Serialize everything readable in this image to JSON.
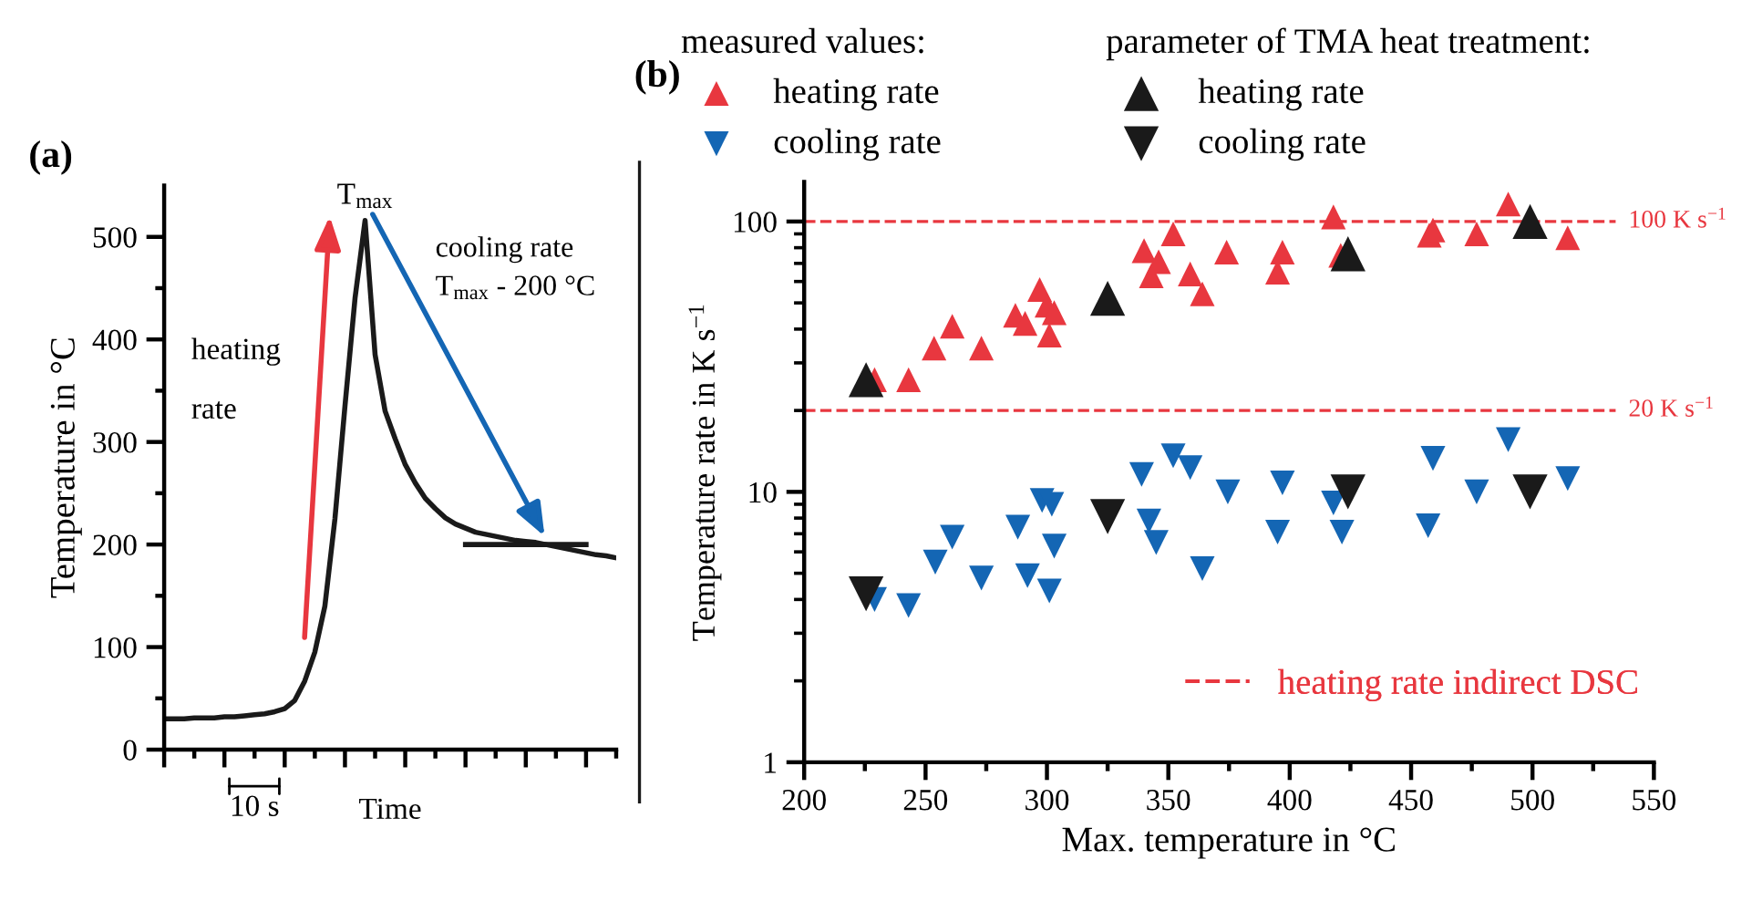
{
  "chart_data": [
    {
      "type": "line",
      "title": "(a)",
      "xlabel": "Time",
      "ylabel": "Temperature in °C",
      "categories": [
        null,
        null,
        null,
        null,
        null,
        null,
        null,
        null,
        null,
        null,
        null,
        null,
        null,
        null,
        null,
        null,
        null,
        null,
        null,
        null,
        null,
        null,
        null,
        null,
        null,
        null,
        null,
        null,
        null,
        null,
        null,
        null,
        null,
        null,
        null,
        null,
        null,
        null,
        null,
        null,
        null,
        null,
        null,
        null,
        null,
        null
      ],
      "series": [
        {
          "color": "#1a1a1a",
          "values": [
            30,
            30,
            30,
            31,
            31,
            31,
            32,
            32,
            33,
            34,
            35,
            37,
            40,
            48,
            67,
            95,
            140,
            225,
            335,
            440,
            516,
            385,
            330,
            303,
            278,
            260,
            245,
            235,
            226,
            220,
            216,
            212,
            210,
            208,
            206,
            204,
            203,
            202,
            200,
            198,
            196,
            194,
            192,
            190,
            189,
            187
          ]
        },
        {
          "color": "#1a1a1a",
          "values": [
            null,
            null,
            null,
            null,
            null,
            null,
            null,
            null,
            null,
            null,
            null,
            null,
            null,
            null,
            null,
            null,
            null,
            null,
            null,
            null,
            null,
            null,
            null,
            null,
            null,
            null,
            null,
            null,
            null,
            null,
            200,
            200,
            200,
            200,
            200,
            200,
            200,
            200,
            200,
            200,
            200,
            200,
            200,
            null,
            null,
            null
          ]
        }
      ],
      "ylim": [
        0,
        550
      ],
      "yticks": [
        0,
        {
          "value": 50,
          "label": null
        },
        100,
        {
          "value": 150,
          "label": null
        },
        200,
        {
          "value": 250,
          "label": null
        },
        300,
        {
          "value": 350,
          "label": null
        },
        400,
        {
          "value": 450,
          "label": null
        },
        500
      ],
      "annotations": [
        "T$_{max}$",
        "heating\n\nrate",
        "cooling rate\nT$_{max}$ - 200 °C",
        "10 s"
      ],
      "grid": false,
      "marker": "none",
      "line_style": "solid"
    },
    {
      "type": "scatter",
      "title": "(b)",
      "xlabel": "Max. temperature in °C",
      "ylabel": "Temperature rate in K s$^{−1}$",
      "series": [
        {
          "name": "heating rate",
          "color": "#e8373f",
          "marker": "triangle",
          "x": [
            229,
            243,
            253.5,
            261,
            273,
            287,
            291,
            297,
            300,
            303,
            301,
            340,
            343,
            346,
            352,
            359,
            364,
            374,
            395,
            397,
            418,
            421,
            457.5,
            459,
            477,
            490,
            514.5
          ],
          "values": [
            26,
            26,
            34,
            41,
            34,
            45,
            42,
            56,
            49,
            46,
            38,
            78,
            63,
            71,
            90,
            64,
            54,
            77,
            65,
            77,
            104,
            75,
            89,
            93,
            90,
            116,
            87
          ]
        },
        {
          "name": "cooling rate",
          "color": "#1466b4",
          "marker": "triangle-down",
          "x": [
            229,
            243,
            254,
            261,
            273,
            288,
            292,
            298,
            302,
            303,
            301,
            339,
            342,
            345,
            352,
            359,
            364,
            374.5,
            395,
            397,
            418,
            421.5,
            457,
            459,
            477,
            490,
            514.5
          ],
          "values": [
            4.0,
            3.8,
            5.5,
            6.8,
            4.8,
            7.4,
            4.9,
            9.3,
            9.0,
            6.3,
            4.3,
            11.6,
            7.8,
            6.5,
            13.6,
            12.3,
            5.2,
            10,
            7.1,
            10.8,
            9.1,
            7.1,
            7.5,
            13.3,
            10,
            15.6,
            11.2
          ]
        },
        {
          "name": "heating rate",
          "color": "#1a1a1a",
          "marker": "triangle",
          "x": [
            225.5,
            325,
            424,
            499
          ],
          "values": [
            26,
            52,
            76,
            100
          ]
        },
        {
          "name": "cooling rate",
          "color": "#1a1a1a",
          "marker": "triangle-down",
          "x": [
            225.5,
            325,
            424,
            499
          ],
          "values": [
            4.2,
            8.1,
            10,
            10
          ]
        }
      ],
      "log": "y",
      "xlim": [
        200,
        550
      ],
      "xticks": [
        200,
        {
          "value": 225,
          "label": null
        },
        250,
        {
          "value": 275,
          "label": null
        },
        300,
        {
          "value": 325,
          "label": null
        },
        350,
        {
          "value": 375,
          "label": null
        },
        400,
        {
          "value": 425,
          "label": null
        },
        450,
        {
          "value": 475,
          "label": null
        },
        500,
        {
          "value": 525,
          "label": null
        },
        550
      ],
      "ylim": [
        1,
        140
      ],
      "yticks": [
        1,
        10,
        100
      ],
      "ref_lines": [
        {
          "axis": "y",
          "value": 100,
          "label": "100 K s$^{−1}$",
          "color": "#e8373f",
          "line_style": "dashed"
        },
        {
          "axis": "y",
          "value": 20,
          "label": "20 K s$^{−1}$",
          "color": "#e8373f",
          "line_style": "dashed"
        }
      ],
      "annotations": [
        "measured values:",
        "parameter of TMA heat treatment:",
        "heating rate indirect DSC"
      ],
      "grid": false,
      "legend": "top"
    }
  ]
}
